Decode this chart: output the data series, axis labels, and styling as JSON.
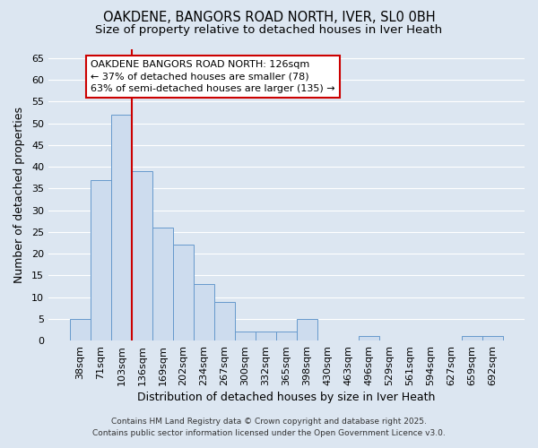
{
  "title_line1": "OAKDENE, BANGORS ROAD NORTH, IVER, SL0 0BH",
  "title_line2": "Size of property relative to detached houses in Iver Heath",
  "xlabel": "Distribution of detached houses by size in Iver Heath",
  "ylabel": "Number of detached properties",
  "categories": [
    "38sqm",
    "71sqm",
    "103sqm",
    "136sqm",
    "169sqm",
    "202sqm",
    "234sqm",
    "267sqm",
    "300sqm",
    "332sqm",
    "365sqm",
    "398sqm",
    "430sqm",
    "463sqm",
    "496sqm",
    "529sqm",
    "561sqm",
    "594sqm",
    "627sqm",
    "659sqm",
    "692sqm"
  ],
  "values": [
    5,
    37,
    52,
    39,
    26,
    22,
    13,
    9,
    2,
    2,
    2,
    5,
    0,
    0,
    1,
    0,
    0,
    0,
    0,
    1,
    1
  ],
  "bar_color": "#cddcee",
  "bar_edge_color": "#6699cc",
  "red_line_x": 3.0,
  "ylim": [
    0,
    67
  ],
  "yticks": [
    0,
    5,
    10,
    15,
    20,
    25,
    30,
    35,
    40,
    45,
    50,
    55,
    60,
    65
  ],
  "background_color": "#dce6f1",
  "grid_color": "#ffffff",
  "annotation_text": "OAKDENE BANGORS ROAD NORTH: 126sqm\n← 37% of detached houses are smaller (78)\n63% of semi-detached houses are larger (135) →",
  "annotation_box_facecolor": "#ffffff",
  "annotation_box_edgecolor": "#cc0000",
  "footer_line1": "Contains HM Land Registry data © Crown copyright and database right 2025.",
  "footer_line2": "Contains public sector information licensed under the Open Government Licence v3.0.",
  "title_fontsize": 10.5,
  "subtitle_fontsize": 9.5,
  "axis_label_fontsize": 9,
  "tick_fontsize": 8,
  "annotation_fontsize": 8,
  "footer_fontsize": 6.5
}
